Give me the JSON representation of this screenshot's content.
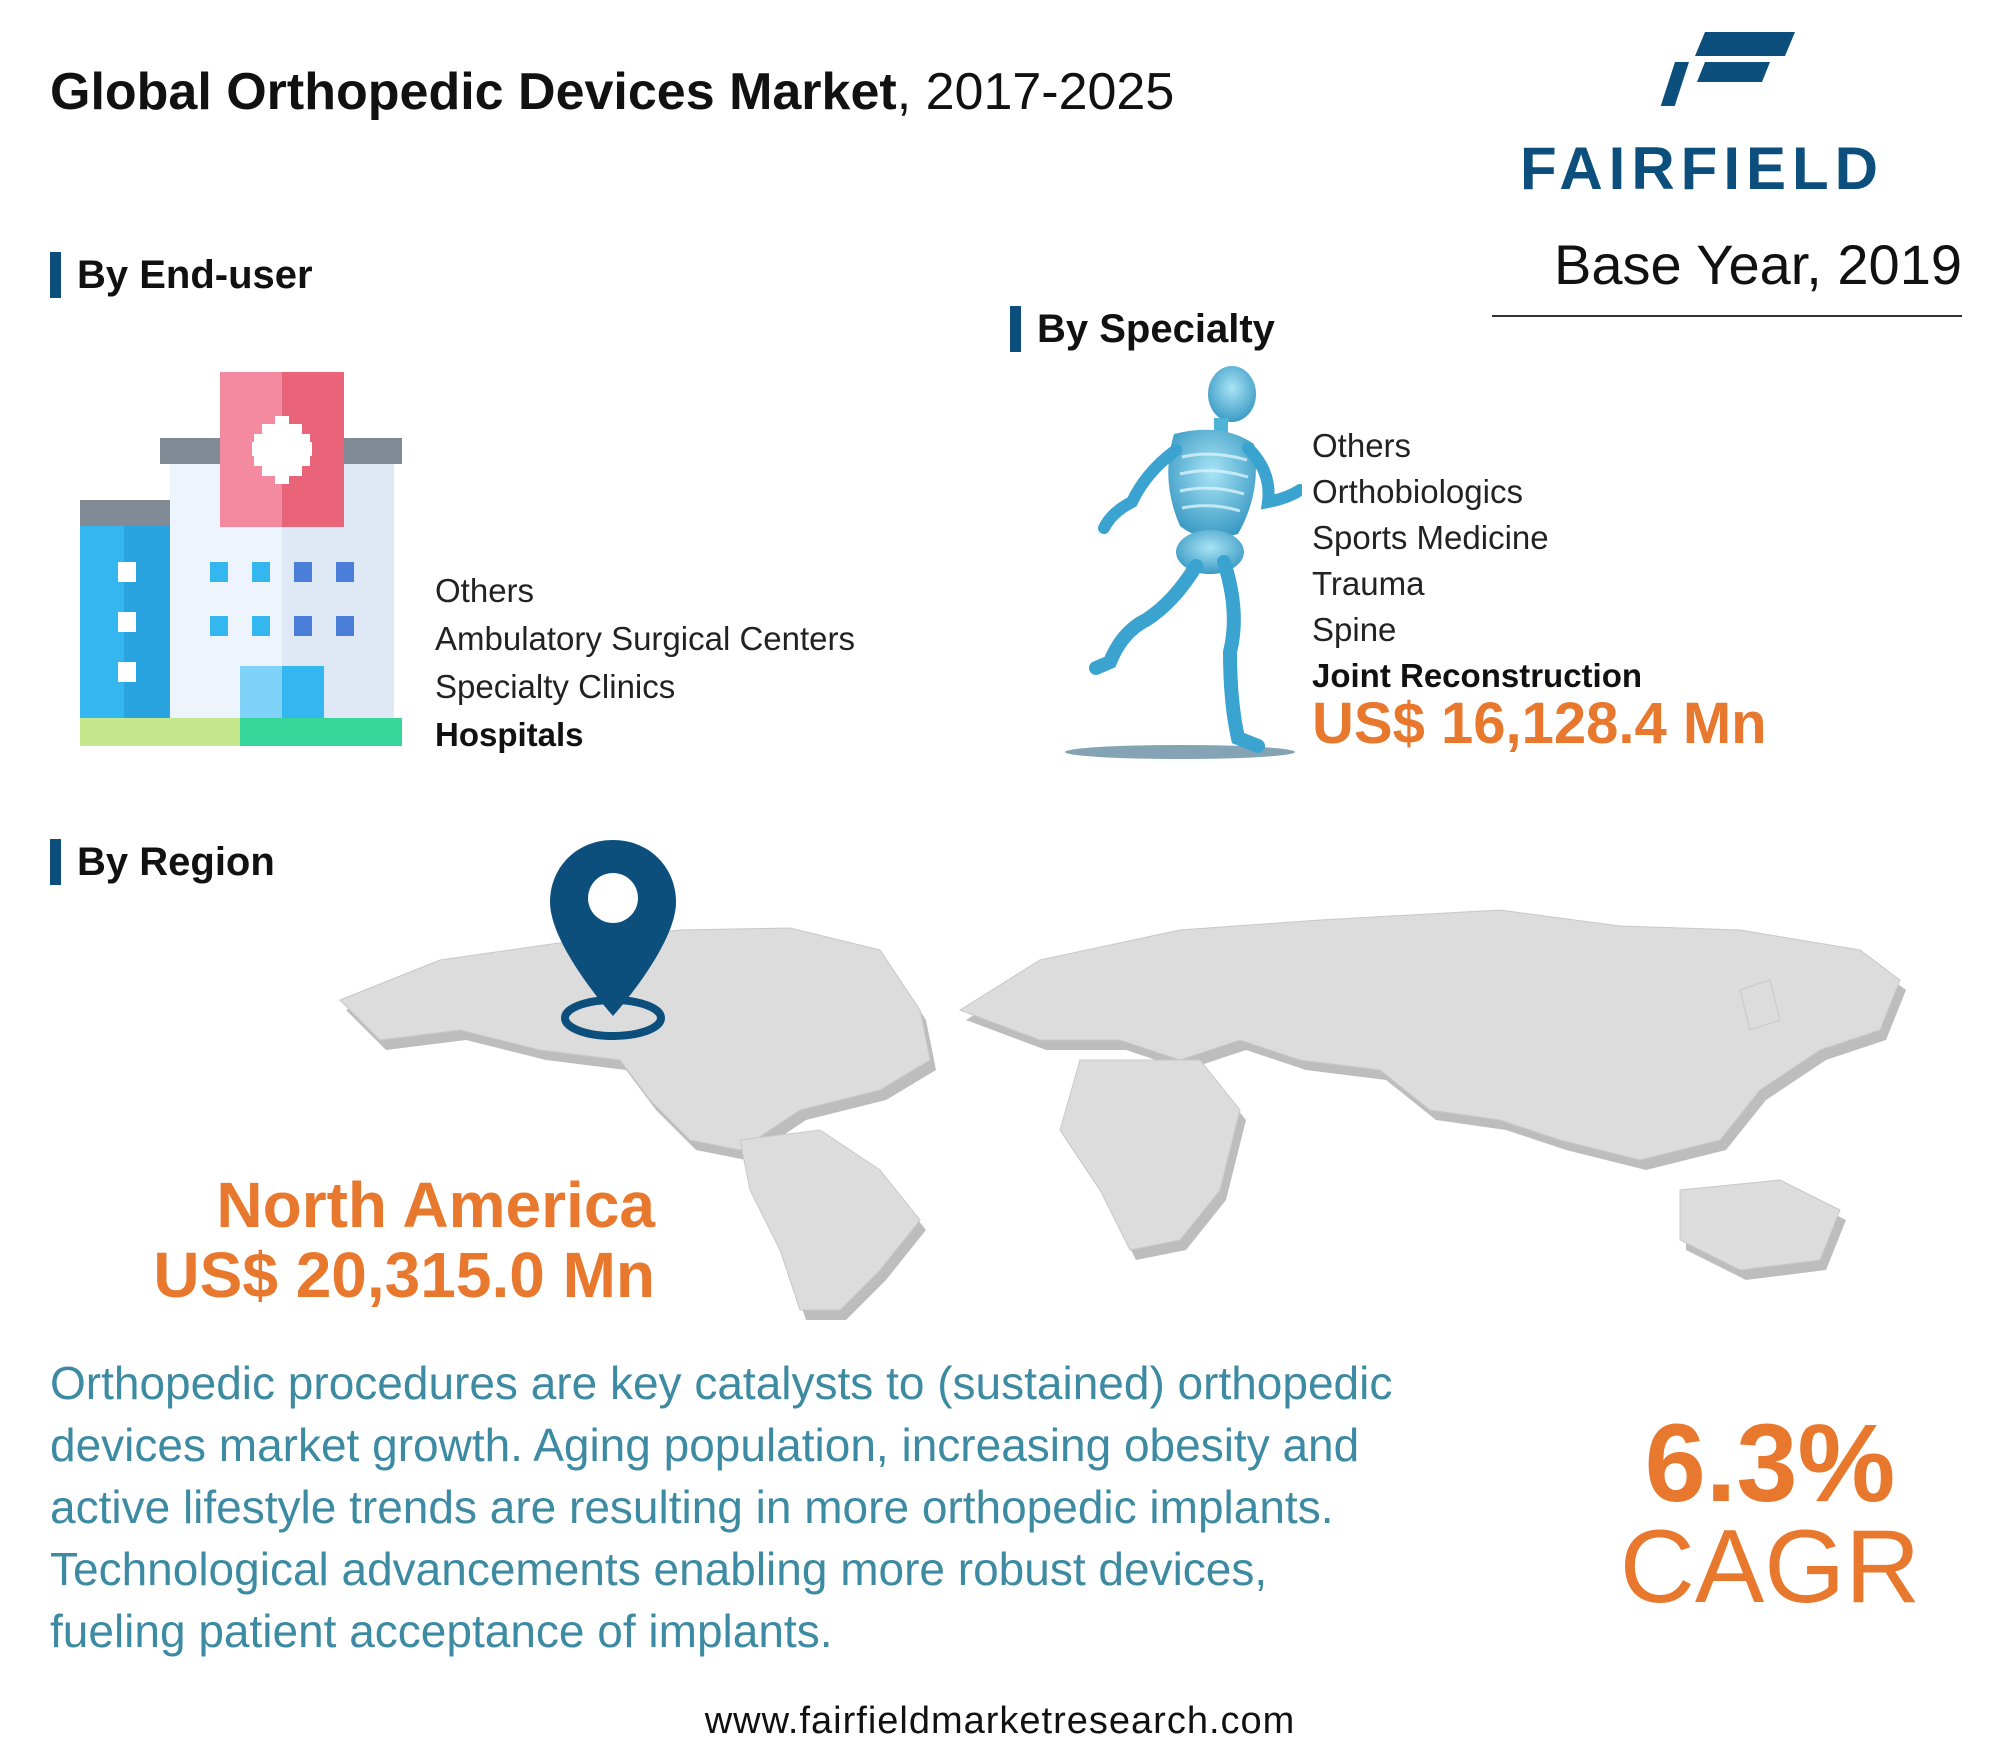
{
  "header": {
    "title_bold": "Global Orthopedic Devices Market",
    "title_rest": ", 2017-2025",
    "logo_text": "FAIRFIELD",
    "base_year": "Base Year, 2019"
  },
  "end_user": {
    "heading": "By End-user",
    "items": [
      "Others",
      "Ambulatory Surgical Centers",
      "Specialty Clinics",
      "Hospitals"
    ],
    "highlighted": "Hospitals"
  },
  "specialty": {
    "heading": "By Specialty",
    "items": [
      "Others",
      "Orthobiologics",
      "Sports Medicine",
      "Trauma",
      "Spine",
      "Joint Reconstruction"
    ],
    "highlighted": "Joint Reconstruction",
    "value": "US$ 16,128.4 Mn"
  },
  "region": {
    "heading": "By Region",
    "name": "North America",
    "value": "US$ 20,315.0 Mn"
  },
  "description": [
    "Orthopedic procedures are key catalysts to (sustained) orthopedic",
    "devices market growth. Aging population, increasing obesity and",
    "active lifestyle trends are resulting in more orthopedic implants.",
    "Technological advancements enabling more robust devices,",
    "fueling patient acceptance of implants."
  ],
  "cagr": {
    "value": "6.3%",
    "label": "CAGR"
  },
  "footer": {
    "website": "www.fairfieldmarketresearch.com"
  },
  "colors": {
    "brand_blue": "#0c4f7c",
    "accent_orange": "#e8782d",
    "text_teal": "#3d8aa3",
    "map_gray": "#d9d9d9"
  },
  "icons": {
    "end_user": "hospital-building-icon",
    "specialty": "running-skeleton-icon",
    "region": "location-pin-icon"
  }
}
